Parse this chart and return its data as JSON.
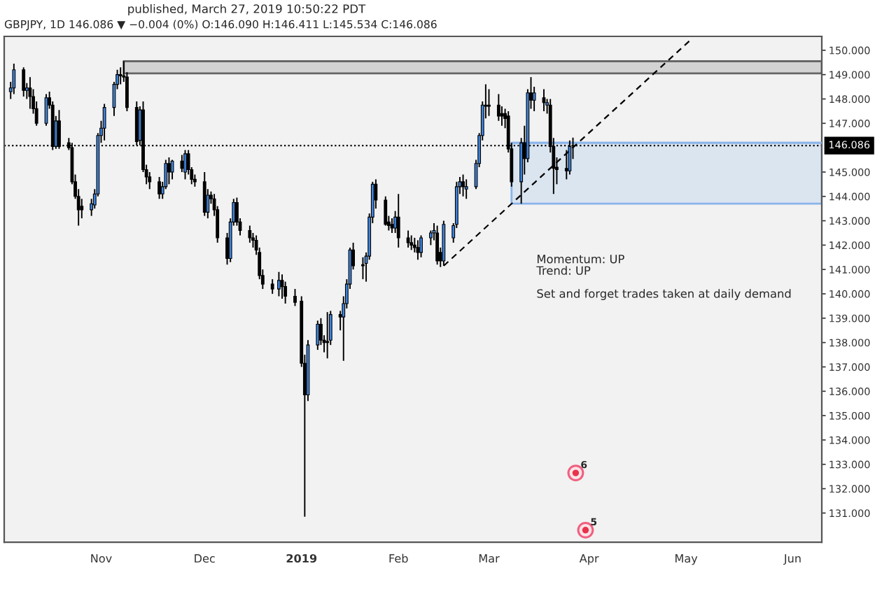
{
  "chart_data": {
    "type": "candlestick",
    "title": "GBPJPY, 1D 146.086 ▼ −0.004 (0%) O:146.090 H:146.411 L:145.534 C:146.086",
    "subtitle": "published, March 27, 2019 10:50:22 PDT",
    "x": [
      "2018-10-04",
      "2018-10-05",
      "2018-10-08",
      "2018-10-09",
      "2018-10-10",
      "2018-10-11",
      "2018-10-12",
      "2018-10-15",
      "2018-10-16",
      "2018-10-17",
      "2018-10-18",
      "2018-10-19",
      "2018-10-22",
      "2018-10-23",
      "2018-10-24",
      "2018-10-25",
      "2018-10-26",
      "2018-10-29",
      "2018-10-30",
      "2018-10-31",
      "2018-11-01",
      "2018-11-02",
      "2018-11-05",
      "2018-11-06",
      "2018-11-07",
      "2018-11-08",
      "2018-11-09",
      "2018-11-12",
      "2018-11-13",
      "2018-11-14",
      "2018-11-15",
      "2018-11-16",
      "2018-11-19",
      "2018-11-20",
      "2018-11-21",
      "2018-11-22",
      "2018-11-23",
      "2018-11-26",
      "2018-11-27",
      "2018-11-28",
      "2018-11-29",
      "2018-11-30",
      "2018-12-03",
      "2018-12-04",
      "2018-12-05",
      "2018-12-06",
      "2018-12-07",
      "2018-12-10",
      "2018-12-11",
      "2018-12-12",
      "2018-12-13",
      "2018-12-14",
      "2018-12-17",
      "2018-12-18",
      "2018-12-19",
      "2018-12-20",
      "2018-12-21",
      "2018-12-24",
      "2018-12-26",
      "2018-12-27",
      "2018-12-28",
      "2018-12-31",
      "2019-01-02",
      "2019-01-03",
      "2019-01-04",
      "2019-01-07",
      "2019-01-08",
      "2019-01-09",
      "2019-01-10",
      "2019-01-11",
      "2019-01-14",
      "2019-01-15",
      "2019-01-16",
      "2019-01-17",
      "2019-01-18",
      "2019-01-21",
      "2019-01-22",
      "2019-01-23",
      "2019-01-24",
      "2019-01-25",
      "2019-01-28",
      "2019-01-29",
      "2019-01-30",
      "2019-01-31",
      "2019-02-01",
      "2019-02-04",
      "2019-02-05",
      "2019-02-06",
      "2019-02-07",
      "2019-02-08",
      "2019-02-11",
      "2019-02-12",
      "2019-02-13",
      "2019-02-14",
      "2019-02-15",
      "2019-02-18",
      "2019-02-19",
      "2019-02-20",
      "2019-02-21",
      "2019-02-22",
      "2019-02-25",
      "2019-02-26",
      "2019-02-27",
      "2019-02-28",
      "2019-03-01",
      "2019-03-04",
      "2019-03-05",
      "2019-03-06",
      "2019-03-07",
      "2019-03-08",
      "2019-03-11",
      "2019-03-12",
      "2019-03-13",
      "2019-03-14",
      "2019-03-15",
      "2019-03-18",
      "2019-03-19",
      "2019-03-20",
      "2019-03-21",
      "2019-03-22",
      "2019-03-25",
      "2019-03-26",
      "2019-03-27"
    ],
    "ohlc": [
      [
        148.3,
        148.7,
        148.0,
        148.45
      ],
      [
        148.45,
        149.45,
        148.2,
        149.2
      ],
      [
        149.2,
        149.3,
        148.1,
        148.35
      ],
      [
        148.35,
        148.65,
        148.0,
        148.45
      ],
      [
        148.45,
        148.9,
        147.6,
        148.1
      ],
      [
        148.1,
        148.4,
        147.4,
        147.6
      ],
      [
        147.6,
        147.9,
        146.9,
        147.0
      ],
      [
        147.0,
        148.2,
        146.9,
        148.05
      ],
      [
        148.05,
        148.3,
        147.6,
        147.75
      ],
      [
        147.75,
        147.9,
        145.9,
        146.05
      ],
      [
        146.05,
        147.3,
        145.95,
        147.1
      ],
      [
        147.1,
        147.55,
        145.95,
        146.05
      ],
      [
        146.2,
        146.4,
        145.9,
        146.0
      ],
      [
        146.0,
        146.2,
        144.5,
        144.6
      ],
      [
        144.6,
        144.9,
        143.9,
        144.0
      ],
      [
        144.0,
        144.3,
        142.8,
        143.45
      ],
      [
        143.6,
        143.9,
        143.1,
        143.45
      ],
      [
        143.45,
        143.9,
        143.2,
        143.7
      ],
      [
        143.65,
        144.3,
        143.5,
        144.1
      ],
      [
        144.1,
        146.6,
        144.0,
        146.5
      ],
      [
        146.5,
        147.1,
        146.2,
        146.8
      ],
      [
        146.8,
        147.8,
        146.3,
        147.65
      ],
      [
        147.65,
        148.7,
        147.3,
        148.6
      ],
      [
        148.6,
        149.2,
        148.4,
        149.0
      ],
      [
        149.0,
        149.3,
        148.6,
        148.95
      ],
      [
        148.95,
        149.55,
        148.7,
        148.9
      ],
      [
        148.9,
        149.1,
        147.5,
        147.65
      ],
      [
        147.65,
        147.9,
        146.1,
        146.25
      ],
      [
        146.3,
        147.7,
        146.1,
        147.55
      ],
      [
        147.55,
        147.9,
        145.0,
        145.1
      ],
      [
        145.1,
        145.3,
        144.5,
        144.8
      ],
      [
        144.8,
        145.0,
        144.3,
        144.6
      ],
      [
        144.6,
        144.8,
        143.9,
        144.1
      ],
      [
        144.1,
        144.6,
        143.9,
        144.4
      ],
      [
        144.4,
        145.5,
        144.3,
        145.35
      ],
      [
        145.35,
        145.6,
        144.5,
        145.0
      ],
      [
        145.0,
        145.5,
        144.7,
        145.45
      ],
      [
        145.45,
        145.7,
        145.0,
        145.15
      ],
      [
        145.0,
        145.9,
        144.7,
        145.75
      ],
      [
        145.75,
        145.9,
        144.9,
        145.1
      ],
      [
        145.1,
        145.2,
        144.5,
        144.7
      ],
      [
        144.7,
        144.9,
        144.4,
        144.6
      ],
      [
        144.6,
        145.0,
        143.2,
        143.35
      ],
      [
        143.35,
        144.3,
        143.1,
        144.05
      ],
      [
        144.05,
        144.2,
        143.7,
        143.9
      ],
      [
        143.9,
        144.1,
        143.2,
        143.45
      ],
      [
        143.45,
        143.6,
        142.1,
        142.3
      ],
      [
        142.3,
        142.5,
        141.2,
        141.45
      ],
      [
        141.45,
        143.1,
        141.3,
        142.95
      ],
      [
        142.95,
        143.9,
        142.8,
        143.75
      ],
      [
        143.75,
        143.95,
        142.8,
        142.95
      ],
      [
        142.95,
        143.1,
        142.4,
        142.6
      ],
      [
        142.6,
        142.8,
        142.1,
        142.3
      ],
      [
        142.3,
        142.5,
        141.9,
        142.2
      ],
      [
        142.2,
        142.4,
        141.6,
        141.8
      ],
      [
        141.7,
        141.9,
        140.6,
        140.75
      ],
      [
        140.75,
        141.0,
        140.2,
        140.4
      ],
      [
        140.4,
        140.6,
        140.0,
        140.2
      ],
      [
        140.2,
        140.9,
        139.9,
        140.55
      ],
      [
        140.55,
        140.8,
        139.8,
        140.3
      ],
      [
        140.3,
        140.5,
        139.6,
        139.9
      ],
      [
        139.9,
        140.2,
        139.5,
        139.65
      ],
      [
        139.7,
        139.9,
        137.0,
        137.15
      ],
      [
        137.15,
        137.5,
        130.85,
        135.85
      ],
      [
        135.85,
        138.1,
        135.6,
        137.9
      ],
      [
        137.9,
        138.9,
        137.7,
        138.75
      ],
      [
        138.75,
        139.0,
        137.9,
        138.1
      ],
      [
        138.1,
        138.3,
        137.6,
        138.0
      ],
      [
        138.05,
        139.25,
        137.35,
        138.0
      ],
      [
        138.1,
        139.3,
        137.9,
        139.15
      ],
      [
        139.15,
        139.3,
        138.5,
        139.05
      ],
      [
        139.05,
        139.9,
        137.25,
        139.6
      ],
      [
        139.6,
        140.6,
        139.4,
        140.4
      ],
      [
        140.4,
        141.9,
        140.2,
        141.8
      ],
      [
        141.8,
        142.1,
        141.0,
        141.15
      ],
      [
        141.2,
        141.5,
        140.6,
        141.15
      ],
      [
        141.25,
        141.7,
        140.5,
        141.55
      ],
      [
        141.55,
        143.3,
        141.4,
        143.15
      ],
      [
        143.15,
        144.6,
        142.9,
        144.5
      ],
      [
        144.5,
        144.7,
        143.5,
        143.85
      ],
      [
        143.85,
        144.0,
        142.8,
        142.85
      ],
      [
        142.95,
        143.2,
        142.6,
        142.8
      ],
      [
        142.85,
        143.1,
        142.5,
        142.7
      ],
      [
        142.7,
        143.4,
        142.5,
        143.15
      ],
      [
        143.15,
        144.1,
        141.9,
        142.3
      ],
      [
        142.3,
        142.6,
        141.9,
        142.1
      ],
      [
        142.1,
        142.4,
        141.8,
        142.0
      ],
      [
        142.0,
        142.3,
        141.7,
        141.9
      ],
      [
        141.9,
        142.2,
        141.4,
        141.7
      ],
      [
        141.7,
        142.4,
        141.5,
        142.3
      ],
      [
        142.3,
        142.6,
        142.0,
        142.5
      ],
      [
        142.5,
        142.9,
        142.2,
        142.6
      ],
      [
        142.5,
        142.8,
        141.2,
        141.35
      ],
      [
        141.7,
        141.9,
        141.1,
        141.35
      ],
      [
        141.35,
        143.0,
        141.15,
        142.85
      ],
      [
        142.3,
        142.9,
        142.1,
        142.8
      ],
      [
        142.85,
        144.6,
        142.7,
        144.4
      ],
      [
        144.4,
        144.8,
        144.1,
        144.6
      ],
      [
        144.6,
        144.9,
        144.0,
        144.4
      ],
      [
        144.3,
        144.7,
        143.9,
        144.4
      ],
      [
        144.4,
        145.5,
        144.3,
        145.35
      ],
      [
        145.35,
        146.6,
        145.2,
        146.5
      ],
      [
        146.5,
        147.9,
        146.3,
        147.75
      ],
      [
        147.75,
        148.6,
        147.2,
        147.7
      ],
      [
        147.75,
        148.4,
        147.3,
        147.7
      ],
      [
        147.75,
        148.2,
        147.1,
        147.3
      ],
      [
        147.4,
        147.7,
        146.9,
        147.3
      ],
      [
        147.4,
        147.6,
        146.8,
        147.2
      ],
      [
        147.3,
        147.5,
        145.8,
        145.95
      ],
      [
        145.95,
        146.2,
        144.4,
        144.6
      ],
      [
        144.6,
        146.4,
        143.7,
        146.2
      ],
      [
        146.2,
        146.9,
        144.9,
        145.55
      ],
      [
        145.55,
        148.4,
        145.4,
        148.25
      ],
      [
        148.25,
        148.9,
        147.6,
        147.95
      ],
      [
        147.95,
        148.5,
        147.5,
        148.25
      ],
      [
        148.05,
        148.4,
        147.5,
        147.85
      ],
      [
        147.75,
        148.0,
        147.4,
        147.85
      ],
      [
        147.75,
        148.0,
        145.8,
        146.05
      ],
      [
        146.05,
        146.4,
        144.1,
        145.15
      ],
      [
        145.2,
        145.6,
        144.5,
        145.1
      ],
      [
        145.15,
        145.9,
        144.7,
        145.05
      ],
      [
        145.05,
        146.3,
        144.9,
        146.05
      ],
      [
        146.09,
        146.411,
        145.534,
        146.086
      ]
    ],
    "colors": [
      "#3d85e0",
      "#3d85e0",
      "#000000",
      "#3d85e0",
      "#000000",
      "#000000",
      "#000000",
      "#3d85e0",
      "#000000",
      "#000000",
      "#3d85e0",
      "#000000",
      "#000000",
      "#000000",
      "#000000",
      "#000000",
      "#000000",
      "#3d85e0",
      "#3d85e0",
      "#3d85e0",
      "#3d85e0",
      "#3d85e0",
      "#3d85e0",
      "#3d85e0",
      "#000000",
      "#000000",
      "#000000",
      "#000000",
      "#3d85e0",
      "#000000",
      "#000000",
      "#000000",
      "#000000",
      "#3d85e0",
      "#3d85e0",
      "#000000",
      "#3d85e0",
      "#000000",
      "#3d85e0",
      "#000000",
      "#000000",
      "#000000",
      "#000000",
      "#3d85e0",
      "#000000",
      "#000000",
      "#000000",
      "#000000",
      "#3d85e0",
      "#3d85e0",
      "#000000",
      "#000000",
      "#000000",
      "#000000",
      "#000000",
      "#000000",
      "#000000",
      "#000000",
      "#3d85e0",
      "#000000",
      "#000000",
      "#000000",
      "#000000",
      "#000000",
      "#3d85e0",
      "#3d85e0",
      "#000000",
      "#000000",
      "#000000",
      "#3d85e0",
      "#000000",
      "#3d85e0",
      "#3d85e0",
      "#3d85e0",
      "#000000",
      "#000000",
      "#3d85e0",
      "#3d85e0",
      "#3d85e0",
      "#000000",
      "#000000",
      "#000000",
      "#000000",
      "#3d85e0",
      "#000000",
      "#000000",
      "#000000",
      "#000000",
      "#000000",
      "#3d85e0",
      "#3d85e0",
      "#3d85e0",
      "#000000",
      "#000000",
      "#3d85e0",
      "#3d85e0",
      "#3d85e0",
      "#3d85e0",
      "#000000",
      "#3d85e0",
      "#3d85e0",
      "#3d85e0",
      "#3d85e0",
      "#000000",
      "#000000",
      "#000000",
      "#000000",
      "#000000",
      "#000000",
      "#000000",
      "#3d85e0",
      "#000000",
      "#3d85e0",
      "#000000",
      "#3d85e0",
      "#000000",
      "#3d85e0",
      "#000000",
      "#000000",
      "#000000",
      "#000000",
      "#3d85e0",
      "#000000"
    ],
    "series": [
      {
        "type": "line",
        "x": [
          "2018-11-08",
          "2019-06-12"
        ],
        "values": [
          149.55,
          149.55
        ],
        "upper": [
          149.55,
          149.55
        ],
        "lower": [
          149.05,
          149.05
        ],
        "color": "#666666"
      },
      {
        "type": "line",
        "x": [
          "2019-03-08",
          "2019-06-12"
        ],
        "values": [
          146.2,
          146.2
        ],
        "upper": [
          146.2,
          146.2
        ],
        "lower": [
          143.7,
          143.7
        ],
        "color": "#8ab4ea"
      },
      {
        "type": "line",
        "x": [
          "2019-02-15",
          "2019-05-03"
        ],
        "values": [
          141.15,
          150.5
        ],
        "color": "#000000",
        "line_style": "dashed"
      }
    ],
    "ref_lines": [
      {
        "axis": "y",
        "value": 146.086,
        "label": "146.086",
        "color": "#000000",
        "line_style": "dotted"
      }
    ],
    "annotations": [
      "Momentum: UP\nTrend: UP\n\nSet and forget trades taken at daily demand",
      "6",
      "5"
    ],
    "xlim": [
      "2018-10-02",
      "2019-06-12"
    ],
    "xticks": [
      {
        "value": "2018-11-01",
        "label": "Nov"
      },
      {
        "value": "2018-12-03",
        "label": "Dec"
      },
      {
        "value": "2019-01-02",
        "label": "2019"
      },
      {
        "value": "2019-02-01",
        "label": "Feb"
      },
      {
        "value": "2019-03-01",
        "label": "Mar"
      },
      {
        "value": "2019-04-01",
        "label": "Apr"
      },
      {
        "value": "2019-05-01",
        "label": "May"
      },
      {
        "value": "2019-06-03",
        "label": "Jun"
      }
    ],
    "ylim": [
      129.8,
      150.57
    ],
    "yticks": [
      {
        "value": 131,
        "label": "131.000"
      },
      {
        "value": 132,
        "label": "132.000"
      },
      {
        "value": 133,
        "label": "133.000"
      },
      {
        "value": 134,
        "label": "134.000"
      },
      {
        "value": 135,
        "label": "135.000"
      },
      {
        "value": 136,
        "label": "136.000"
      },
      {
        "value": 137,
        "label": "137.000"
      },
      {
        "value": 138,
        "label": "138.000"
      },
      {
        "value": 139,
        "label": "139.000"
      },
      {
        "value": 140,
        "label": "140.000"
      },
      {
        "value": 141,
        "label": "141.000"
      },
      {
        "value": 142,
        "label": "142.000"
      },
      {
        "value": 143,
        "label": "143.000"
      },
      {
        "value": 144,
        "label": "144.000"
      },
      {
        "value": 145,
        "label": "145.000"
      },
      {
        "value": 147,
        "label": "147.000"
      },
      {
        "value": 148,
        "label": "148.000"
      },
      {
        "value": 149,
        "label": "149.000"
      },
      {
        "value": 150,
        "label": "150.000"
      }
    ]
  }
}
